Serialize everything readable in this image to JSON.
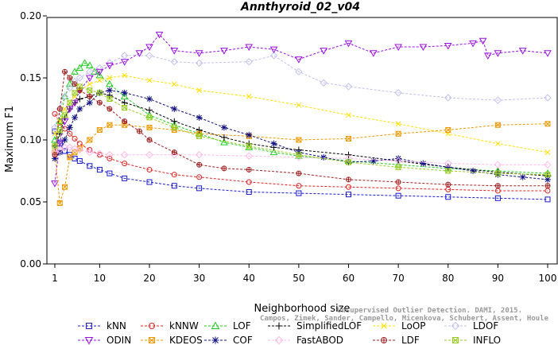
{
  "chart_data": {
    "type": "line",
    "title": "Annthyroid_02_v04",
    "xlabel": "Neighborhood size",
    "ylabel": "Maximum F1",
    "xlim": [
      1,
      100
    ],
    "ylim": [
      0.0,
      0.2
    ],
    "x_ticks": [
      1,
      10,
      20,
      30,
      40,
      50,
      60,
      70,
      80,
      90,
      100
    ],
    "y_ticks": [
      "0.00",
      "0.05",
      "0.10",
      "0.15",
      "0.20"
    ],
    "grid": false,
    "legend_position": "bottom",
    "watermark": [
      "Unsupervised Outlier Detection. DAMI, 2015.",
      "Campos, Zimek, Sander, Campello, Micenkova, Schubert, Assent, Houle"
    ],
    "series": [
      {
        "name": "kNN",
        "color": "#1a1acc",
        "marker": "square",
        "x": [
          1,
          2,
          3,
          4,
          5,
          6,
          8,
          10,
          12,
          15,
          20,
          25,
          30,
          40,
          50,
          60,
          70,
          80,
          90,
          100
        ],
        "y": [
          0.107,
          0.097,
          0.091,
          0.088,
          0.085,
          0.083,
          0.079,
          0.076,
          0.073,
          0.069,
          0.066,
          0.063,
          0.061,
          0.058,
          0.057,
          0.056,
          0.055,
          0.054,
          0.053,
          0.052
        ]
      },
      {
        "name": "kNNW",
        "color": "#dd2222",
        "marker": "circle",
        "x": [
          1,
          2,
          3,
          4,
          5,
          6,
          8,
          10,
          12,
          15,
          20,
          25,
          30,
          40,
          50,
          60,
          70,
          80,
          90,
          100
        ],
        "y": [
          0.121,
          0.114,
          0.109,
          0.105,
          0.101,
          0.097,
          0.092,
          0.088,
          0.085,
          0.081,
          0.076,
          0.072,
          0.07,
          0.066,
          0.063,
          0.062,
          0.061,
          0.06,
          0.059,
          0.059
        ]
      },
      {
        "name": "LOF",
        "color": "#22cc22",
        "marker": "triangle-up",
        "x": [
          1,
          2,
          3,
          4,
          5,
          6,
          7,
          8,
          9,
          10,
          12,
          15,
          20,
          25,
          30,
          35,
          40,
          45,
          50,
          60,
          70,
          80,
          90,
          100
        ],
        "y": [
          0.1,
          0.115,
          0.135,
          0.145,
          0.155,
          0.158,
          0.162,
          0.16,
          0.155,
          0.152,
          0.145,
          0.135,
          0.12,
          0.112,
          0.105,
          0.098,
          0.094,
          0.09,
          0.087,
          0.083,
          0.08,
          0.077,
          0.075,
          0.073
        ]
      },
      {
        "name": "SimplifiedLOF",
        "color": "#000000",
        "marker": "plus",
        "x": [
          1,
          2,
          3,
          4,
          5,
          6,
          8,
          10,
          12,
          15,
          20,
          25,
          30,
          35,
          40,
          45,
          50,
          60,
          70,
          80,
          90,
          100
        ],
        "y": [
          0.095,
          0.105,
          0.118,
          0.125,
          0.13,
          0.133,
          0.135,
          0.138,
          0.136,
          0.13,
          0.124,
          0.115,
          0.108,
          0.102,
          0.097,
          0.094,
          0.092,
          0.088,
          0.083,
          0.078,
          0.074,
          0.071
        ]
      },
      {
        "name": "LoOP",
        "color": "#ffe000",
        "marker": "cross",
        "x": [
          1,
          2,
          3,
          4,
          5,
          6,
          8,
          10,
          12,
          15,
          20,
          25,
          30,
          40,
          50,
          60,
          70,
          80,
          90,
          100
        ],
        "y": [
          0.105,
          0.115,
          0.125,
          0.13,
          0.135,
          0.14,
          0.145,
          0.148,
          0.15,
          0.152,
          0.148,
          0.145,
          0.14,
          0.135,
          0.128,
          0.12,
          0.113,
          0.105,
          0.097,
          0.09
        ]
      },
      {
        "name": "LDOF",
        "color": "#c0c0ee",
        "marker": "diamond",
        "x": [
          1,
          2,
          3,
          4,
          5,
          6,
          8,
          10,
          12,
          15,
          20,
          25,
          30,
          40,
          45,
          50,
          55,
          60,
          70,
          80,
          90,
          100
        ],
        "y": [
          0.11,
          0.125,
          0.135,
          0.142,
          0.147,
          0.15,
          0.155,
          0.158,
          0.162,
          0.168,
          0.168,
          0.163,
          0.162,
          0.163,
          0.168,
          0.155,
          0.146,
          0.143,
          0.138,
          0.134,
          0.132,
          0.134
        ]
      },
      {
        "name": "ODIN",
        "color": "#9911dd",
        "marker": "triangle-down",
        "x": [
          1,
          2,
          3,
          4,
          5,
          6,
          8,
          10,
          12,
          15,
          18,
          20,
          22,
          25,
          30,
          35,
          40,
          45,
          50,
          55,
          60,
          65,
          70,
          75,
          80,
          85,
          87,
          88,
          90,
          95,
          100
        ],
        "y": [
          0.065,
          0.098,
          0.115,
          0.125,
          0.13,
          0.14,
          0.15,
          0.155,
          0.16,
          0.163,
          0.17,
          0.175,
          0.185,
          0.172,
          0.17,
          0.172,
          0.175,
          0.173,
          0.165,
          0.172,
          0.178,
          0.17,
          0.175,
          0.175,
          0.176,
          0.178,
          0.18,
          0.168,
          0.17,
          0.172,
          0.17
        ]
      },
      {
        "name": "KDEOS",
        "color": "#ee9900",
        "marker": "square-x",
        "x": [
          1,
          2,
          3,
          4,
          5,
          6,
          8,
          10,
          12,
          15,
          20,
          25,
          30,
          40,
          50,
          60,
          70,
          80,
          90,
          100
        ],
        "y": [
          0.09,
          0.049,
          0.062,
          0.086,
          0.09,
          0.093,
          0.1,
          0.108,
          0.112,
          0.112,
          0.11,
          0.108,
          0.105,
          0.103,
          0.1,
          0.101,
          0.105,
          0.108,
          0.112,
          0.113
        ]
      },
      {
        "name": "COF",
        "color": "#101080",
        "marker": "star",
        "x": [
          1,
          2,
          3,
          4,
          5,
          6,
          8,
          10,
          12,
          15,
          20,
          25,
          30,
          35,
          40,
          45,
          50,
          55,
          60,
          65,
          70,
          75,
          80,
          85,
          90,
          95,
          100
        ],
        "y": [
          0.085,
          0.09,
          0.1,
          0.11,
          0.118,
          0.125,
          0.13,
          0.138,
          0.14,
          0.138,
          0.133,
          0.125,
          0.118,
          0.11,
          0.104,
          0.097,
          0.09,
          0.086,
          0.082,
          0.083,
          0.085,
          0.081,
          0.078,
          0.075,
          0.072,
          0.07,
          0.068
        ]
      },
      {
        "name": "FastABOD",
        "color": "#ffb8e8",
        "marker": "diamond",
        "x": [
          1,
          2,
          3,
          4,
          5,
          6,
          8,
          10,
          12,
          15,
          20,
          25,
          30,
          40,
          50,
          60,
          70,
          80,
          90,
          100
        ],
        "y": [
          0.09,
          0.092,
          0.094,
          0.094,
          0.093,
          0.092,
          0.09,
          0.089,
          0.088,
          0.088,
          0.088,
          0.088,
          0.088,
          0.087,
          0.086,
          0.085,
          0.083,
          0.081,
          0.08,
          0.08
        ]
      },
      {
        "name": "LDF",
        "color": "#a02020",
        "marker": "circle-plus",
        "x": [
          1,
          2,
          3,
          4,
          5,
          6,
          8,
          10,
          12,
          15,
          18,
          20,
          25,
          30,
          35,
          40,
          50,
          60,
          70,
          80,
          90,
          100
        ],
        "y": [
          0.088,
          0.125,
          0.155,
          0.15,
          0.145,
          0.14,
          0.135,
          0.13,
          0.125,
          0.115,
          0.107,
          0.1,
          0.09,
          0.08,
          0.077,
          0.076,
          0.073,
          0.068,
          0.066,
          0.064,
          0.063,
          0.063
        ]
      },
      {
        "name": "INFLO",
        "color": "#99cc22",
        "marker": "square-x",
        "x": [
          1,
          2,
          3,
          4,
          5,
          6,
          8,
          10,
          12,
          15,
          20,
          25,
          30,
          40,
          50,
          60,
          70,
          80,
          90,
          100
        ],
        "y": [
          0.095,
          0.108,
          0.12,
          0.13,
          0.138,
          0.143,
          0.14,
          0.138,
          0.133,
          0.126,
          0.118,
          0.11,
          0.103,
          0.095,
          0.088,
          0.082,
          0.078,
          0.075,
          0.073,
          0.072
        ]
      }
    ]
  }
}
